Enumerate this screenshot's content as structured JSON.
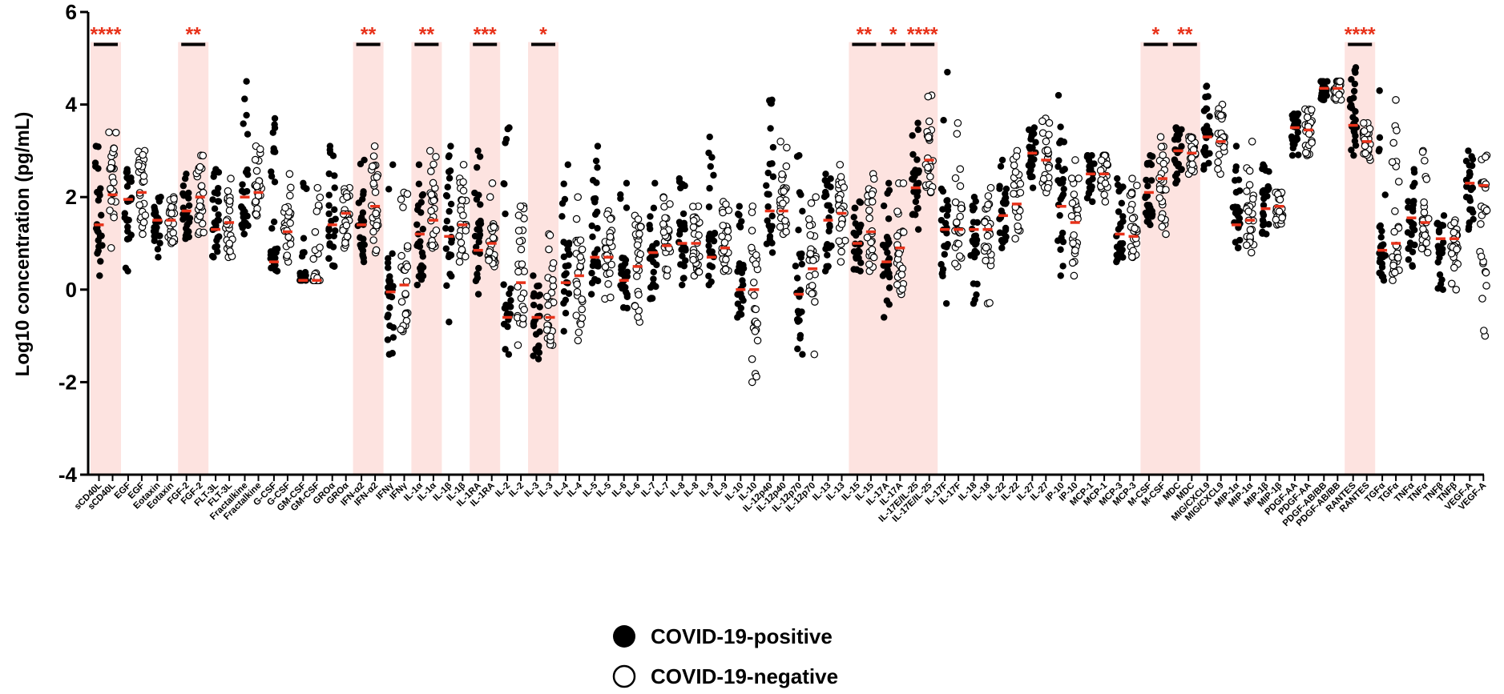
{
  "chart_data": {
    "type": "scatter",
    "ylabel": "Log10 concentration (pg/mL)",
    "ylim": [
      -4,
      6
    ],
    "yticks": [
      -4,
      -2,
      0,
      2,
      4,
      6
    ],
    "grid": false,
    "legend_position": "bottom-center",
    "colors": {
      "positive_fill": "#000000",
      "negative_fill": "#ffffff",
      "median": "#e8321a",
      "highlight": "#fde3e0",
      "significance": "#e8321a"
    },
    "legend": [
      {
        "label": "COVID-19-positive",
        "marker": "filled-circle"
      },
      {
        "label": "COVID-19-negative",
        "marker": "open-circle"
      }
    ],
    "analytes": [
      {
        "name": "sCD40L",
        "pos_median": 1.4,
        "neg_median": 2.05,
        "pos_range": [
          0.3,
          3.1
        ],
        "neg_range": [
          0.9,
          3.4
        ],
        "sig": "****",
        "highlight": true
      },
      {
        "name": "EGF",
        "pos_median": 1.95,
        "neg_median": 2.1,
        "pos_range": [
          0.4,
          2.6
        ],
        "neg_range": [
          1.2,
          3.0
        ],
        "sig": "",
        "highlight": false
      },
      {
        "name": "Eotaxin",
        "pos_median": 1.5,
        "neg_median": 1.5,
        "pos_range": [
          0.7,
          2.0
        ],
        "neg_range": [
          1.0,
          2.0
        ],
        "sig": "",
        "highlight": false
      },
      {
        "name": "FGF-2",
        "pos_median": 1.7,
        "neg_median": 2.0,
        "pos_range": [
          1.1,
          2.5
        ],
        "neg_range": [
          1.2,
          2.9
        ],
        "sig": "**",
        "highlight": true
      },
      {
        "name": "FLT-3L",
        "pos_median": 1.3,
        "neg_median": 1.45,
        "pos_range": [
          0.7,
          2.6
        ],
        "neg_range": [
          0.7,
          2.4
        ],
        "sig": "",
        "highlight": false
      },
      {
        "name": "Fractalkine",
        "pos_median": 2.0,
        "neg_median": 2.1,
        "pos_range": [
          1.2,
          4.5
        ],
        "neg_range": [
          1.6,
          3.1
        ],
        "sig": "",
        "highlight": false
      },
      {
        "name": "G-CSF",
        "pos_median": 0.6,
        "neg_median": 1.25,
        "pos_range": [
          0.4,
          3.7
        ],
        "neg_range": [
          0.6,
          2.5
        ],
        "sig": "",
        "highlight": false
      },
      {
        "name": "GM-CSF",
        "pos_median": 0.2,
        "neg_median": 0.2,
        "pos_range": [
          0.2,
          2.3
        ],
        "neg_range": [
          0.2,
          2.2
        ],
        "sig": "",
        "highlight": false
      },
      {
        "name": "GROα",
        "pos_median": 1.4,
        "neg_median": 1.65,
        "pos_range": [
          0.5,
          3.1
        ],
        "neg_range": [
          0.9,
          2.2
        ],
        "sig": "",
        "highlight": false
      },
      {
        "name": "IFN-α2",
        "pos_median": 1.4,
        "neg_median": 1.8,
        "pos_range": [
          0.6,
          2.8
        ],
        "neg_range": [
          0.8,
          3.1
        ],
        "sig": "**",
        "highlight": true
      },
      {
        "name": "IFNγ",
        "pos_median": -0.05,
        "neg_median": 0.1,
        "pos_range": [
          -1.4,
          2.7
        ],
        "neg_range": [
          -0.9,
          2.1
        ],
        "sig": "",
        "highlight": false
      },
      {
        "name": "IL-1α",
        "pos_median": 1.2,
        "neg_median": 1.5,
        "pos_range": [
          0.1,
          2.7
        ],
        "neg_range": [
          0.9,
          3.0
        ],
        "sig": "**",
        "highlight": true
      },
      {
        "name": "IL-1β",
        "pos_median": 1.15,
        "neg_median": 1.4,
        "pos_range": [
          -0.7,
          3.1
        ],
        "neg_range": [
          0.6,
          2.7
        ],
        "sig": "",
        "highlight": false
      },
      {
        "name": "IL-1RA",
        "pos_median": 0.85,
        "neg_median": 1.0,
        "pos_range": [
          -0.1,
          3.0
        ],
        "neg_range": [
          0.5,
          2.3
        ],
        "sig": "***",
        "highlight": true
      },
      {
        "name": "IL-2",
        "pos_median": -0.6,
        "neg_median": 0.15,
        "pos_range": [
          -1.4,
          3.5
        ],
        "neg_range": [
          -1.2,
          1.8
        ],
        "sig": "",
        "highlight": false
      },
      {
        "name": "IL-3",
        "pos_median": -0.6,
        "neg_median": -0.6,
        "pos_range": [
          -1.5,
          0.3
        ],
        "neg_range": [
          -1.2,
          1.2
        ],
        "sig": "*",
        "highlight": true
      },
      {
        "name": "IL-4",
        "pos_median": 0.15,
        "neg_median": 0.3,
        "pos_range": [
          -0.9,
          2.7
        ],
        "neg_range": [
          -1.1,
          2.0
        ],
        "sig": "",
        "highlight": false
      },
      {
        "name": "IL-5",
        "pos_median": 0.7,
        "neg_median": 0.7,
        "pos_range": [
          -0.1,
          3.1
        ],
        "neg_range": [
          -0.2,
          1.7
        ],
        "sig": "",
        "highlight": false
      },
      {
        "name": "IL-6",
        "pos_median": 0.2,
        "neg_median": 0.5,
        "pos_range": [
          -0.4,
          2.3
        ],
        "neg_range": [
          -0.7,
          1.6
        ],
        "sig": "",
        "highlight": false
      },
      {
        "name": "IL-7",
        "pos_median": 0.8,
        "neg_median": 0.95,
        "pos_range": [
          -0.2,
          2.3
        ],
        "neg_range": [
          0.3,
          2.0
        ],
        "sig": "",
        "highlight": false
      },
      {
        "name": "IL-8",
        "pos_median": 1.0,
        "neg_median": 1.0,
        "pos_range": [
          0.1,
          2.4
        ],
        "neg_range": [
          0.3,
          1.8
        ],
        "sig": "",
        "highlight": false
      },
      {
        "name": "IL-9",
        "pos_median": 0.7,
        "neg_median": 0.9,
        "pos_range": [
          0.1,
          3.3
        ],
        "neg_range": [
          0.4,
          1.9
        ],
        "sig": "",
        "highlight": false
      },
      {
        "name": "IL-10",
        "pos_median": 0.0,
        "neg_median": 0.0,
        "pos_range": [
          -0.6,
          1.8
        ],
        "neg_range": [
          -2.0,
          1.8
        ],
        "sig": "",
        "highlight": false
      },
      {
        "name": "IL-12p40",
        "pos_median": 1.7,
        "neg_median": 1.7,
        "pos_range": [
          0.8,
          4.1
        ],
        "neg_range": [
          1.2,
          3.2
        ],
        "sig": "",
        "highlight": false
      },
      {
        "name": "IL-12p70",
        "pos_median": -0.1,
        "neg_median": 0.45,
        "pos_range": [
          -1.4,
          2.9
        ],
        "neg_range": [
          -1.4,
          2.0
        ],
        "sig": "",
        "highlight": false
      },
      {
        "name": "IL-13",
        "pos_median": 1.5,
        "neg_median": 1.65,
        "pos_range": [
          0.4,
          2.5
        ],
        "neg_range": [
          0.6,
          2.7
        ],
        "sig": "",
        "highlight": false
      },
      {
        "name": "IL-15",
        "pos_median": 1.0,
        "neg_median": 1.25,
        "pos_range": [
          0.4,
          1.9
        ],
        "neg_range": [
          0.4,
          2.5
        ],
        "sig": "**",
        "highlight": true
      },
      {
        "name": "IL-17A",
        "pos_median": 0.6,
        "neg_median": 0.9,
        "pos_range": [
          -0.6,
          2.3
        ],
        "neg_range": [
          -0.1,
          2.3
        ],
        "sig": "*",
        "highlight": true
      },
      {
        "name": "IL-17E/IL-25",
        "pos_median": 2.2,
        "neg_median": 2.8,
        "pos_range": [
          1.3,
          3.6
        ],
        "neg_range": [
          2.1,
          4.2
        ],
        "sig": "****",
        "highlight": true
      },
      {
        "name": "IL-17F",
        "pos_median": 1.3,
        "neg_median": 1.3,
        "pos_range": [
          -0.3,
          4.7
        ],
        "neg_range": [
          0.5,
          3.6
        ],
        "sig": "",
        "highlight": false
      },
      {
        "name": "IL-18",
        "pos_median": 1.3,
        "neg_median": 1.3,
        "pos_range": [
          -0.3,
          2.0
        ],
        "neg_range": [
          -0.3,
          2.2
        ],
        "sig": "",
        "highlight": false
      },
      {
        "name": "IL-22",
        "pos_median": 1.6,
        "neg_median": 1.85,
        "pos_range": [
          0.9,
          2.8
        ],
        "neg_range": [
          1.1,
          3.0
        ],
        "sig": "",
        "highlight": false
      },
      {
        "name": "IL-27",
        "pos_median": 2.95,
        "neg_median": 2.8,
        "pos_range": [
          2.2,
          3.5
        ],
        "neg_range": [
          2.1,
          3.7
        ],
        "sig": "",
        "highlight": false
      },
      {
        "name": "IP-10",
        "pos_median": 1.8,
        "neg_median": 1.45,
        "pos_range": [
          0.3,
          4.2
        ],
        "neg_range": [
          0.3,
          2.8
        ],
        "sig": "",
        "highlight": false
      },
      {
        "name": "MCP-1",
        "pos_median": 2.5,
        "neg_median": 2.5,
        "pos_range": [
          1.9,
          2.9
        ],
        "neg_range": [
          1.9,
          2.9
        ],
        "sig": "",
        "highlight": false
      },
      {
        "name": "MCP-3",
        "pos_median": 1.2,
        "neg_median": 1.15,
        "pos_range": [
          0.6,
          2.4
        ],
        "neg_range": [
          0.7,
          2.4
        ],
        "sig": "",
        "highlight": false
      },
      {
        "name": "M-CSF",
        "pos_median": 2.1,
        "neg_median": 2.4,
        "pos_range": [
          1.4,
          2.9
        ],
        "neg_range": [
          1.2,
          3.3
        ],
        "sig": "*",
        "highlight": true
      },
      {
        "name": "MDC",
        "pos_median": 3.0,
        "neg_median": 2.95,
        "pos_range": [
          2.3,
          3.5
        ],
        "neg_range": [
          2.5,
          3.3
        ],
        "sig": "**",
        "highlight": true
      },
      {
        "name": "MIG/CXCL9",
        "pos_median": 3.3,
        "neg_median": 3.2,
        "pos_range": [
          2.6,
          4.4
        ],
        "neg_range": [
          2.5,
          4.0
        ],
        "sig": "",
        "highlight": false
      },
      {
        "name": "MIP-1α",
        "pos_median": 1.4,
        "neg_median": 1.5,
        "pos_range": [
          0.9,
          3.1
        ],
        "neg_range": [
          0.8,
          3.2
        ],
        "sig": "",
        "highlight": false
      },
      {
        "name": "MIP-1β",
        "pos_median": 1.75,
        "neg_median": 1.8,
        "pos_range": [
          1.2,
          2.7
        ],
        "neg_range": [
          1.4,
          2.1
        ],
        "sig": "",
        "highlight": false
      },
      {
        "name": "PDGF-AA",
        "pos_median": 3.5,
        "neg_median": 3.45,
        "pos_range": [
          2.9,
          3.8
        ],
        "neg_range": [
          2.9,
          3.9
        ],
        "sig": "",
        "highlight": false
      },
      {
        "name": "PDGF-AB/BB",
        "pos_median": 4.35,
        "neg_median": 4.35,
        "pos_range": [
          4.1,
          4.5
        ],
        "neg_range": [
          4.1,
          4.5
        ],
        "sig": "",
        "highlight": false
      },
      {
        "name": "RANTES",
        "pos_median": 3.55,
        "neg_median": 3.2,
        "pos_range": [
          2.9,
          4.8
        ],
        "neg_range": [
          2.8,
          3.6
        ],
        "sig": "****",
        "highlight": true
      },
      {
        "name": "TGFα",
        "pos_median": 0.85,
        "neg_median": 1.0,
        "pos_range": [
          0.2,
          4.3
        ],
        "neg_range": [
          0.2,
          4.1
        ],
        "sig": "",
        "highlight": false
      },
      {
        "name": "TNFα",
        "pos_median": 1.55,
        "neg_median": 1.45,
        "pos_range": [
          0.5,
          2.6
        ],
        "neg_range": [
          0.8,
          3.0
        ],
        "sig": "",
        "highlight": false
      },
      {
        "name": "TNFβ",
        "pos_median": 1.1,
        "neg_median": 1.1,
        "pos_range": [
          0.0,
          1.6
        ],
        "neg_range": [
          0.0,
          1.5
        ],
        "sig": "",
        "highlight": false
      },
      {
        "name": "VEGF-A",
        "pos_median": 2.3,
        "neg_median": 2.25,
        "pos_range": [
          1.3,
          3.0
        ],
        "neg_range": [
          -1.0,
          2.9
        ],
        "sig": "",
        "highlight": false
      }
    ]
  }
}
